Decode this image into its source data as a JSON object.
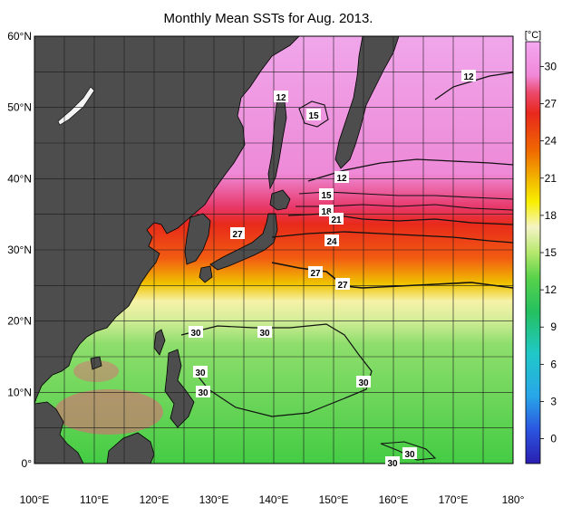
{
  "title": "Monthly Mean SSTs for Aug. 2013.",
  "colorbar": {
    "unit": "[°C]",
    "ticks": [
      "30",
      "27",
      "24",
      "21",
      "18",
      "15",
      "12",
      "9",
      "6",
      "3",
      "0"
    ],
    "tick_values": [
      30,
      27,
      24,
      21,
      18,
      15,
      12,
      9,
      6,
      3,
      0
    ],
    "range": [
      -2,
      32
    ],
    "colors": [
      "#2a1fb0",
      "#2b55e0",
      "#28a6e8",
      "#20c8c8",
      "#24c060",
      "#58d24a",
      "#b6e86c",
      "#f4f4c6",
      "#f8f000",
      "#f2b000",
      "#f06a00",
      "#e8281c",
      "#ec5a80",
      "#f088d8",
      "#f4a8f0"
    ]
  },
  "axes": {
    "lat_labels": [
      "60°N",
      "50°N",
      "40°N",
      "30°N",
      "20°N",
      "10°N",
      "0°"
    ],
    "lon_labels": [
      "100°E",
      "110°E",
      "120°E",
      "130°E",
      "140°E",
      "150°E",
      "160°E",
      "170°E",
      "180°"
    ],
    "lat_range": [
      0,
      60
    ],
    "lon_range": [
      100,
      180
    ]
  },
  "contour_labels": [
    "12",
    "15",
    "12",
    "12",
    "15",
    "18",
    "21",
    "27",
    "24",
    "27",
    "27",
    "30",
    "30",
    "30",
    "30",
    "30",
    "30",
    "30"
  ],
  "colors": {
    "land": "#4d4d4d",
    "coast": "#000000",
    "grid": "#1a1a1a",
    "contour": "#111111"
  }
}
